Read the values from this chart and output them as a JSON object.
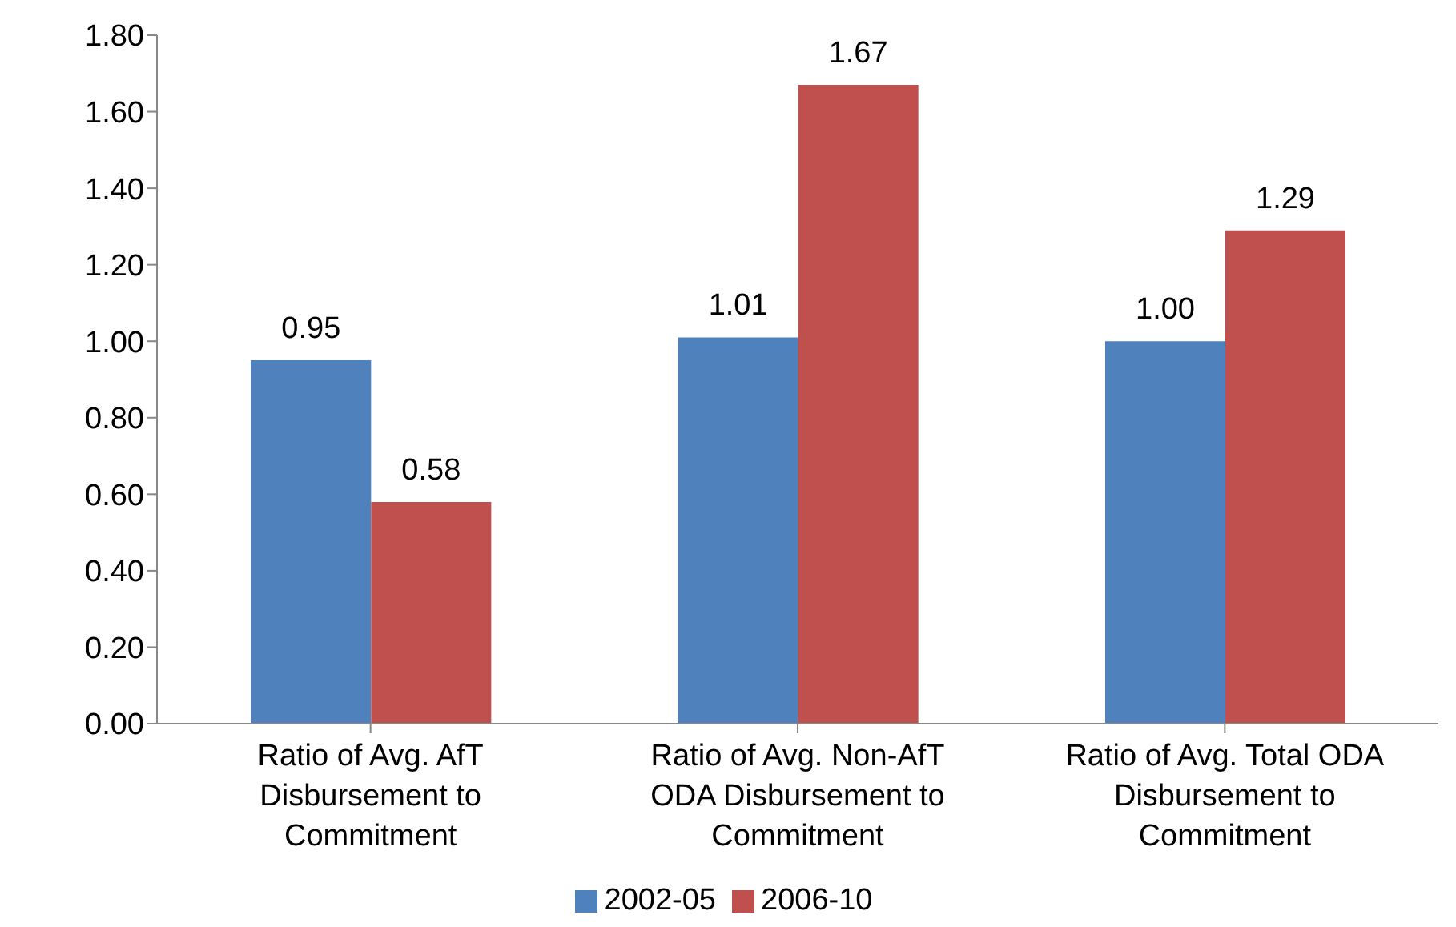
{
  "chart_data": {
    "type": "bar",
    "categories": [
      "Ratio of Avg. AfT Disbursement to Commitment",
      "Ratio of Avg. Non-AfT ODA Disbursement to Commitment",
      "Ratio of Avg. Total ODA Disbursement to Commitment"
    ],
    "series": [
      {
        "name": "2002-05",
        "color": "#4f81bd",
        "values": [
          0.95,
          1.01,
          1.0
        ],
        "value_labels": [
          "0.95",
          "1.01",
          "1.00"
        ]
      },
      {
        "name": "2006-10",
        "color": "#c0504d",
        "values": [
          0.58,
          1.67,
          1.29
        ],
        "value_labels": [
          "0.58",
          "1.67",
          "1.29"
        ]
      }
    ],
    "ylim": [
      0,
      1.8
    ],
    "yticks": [
      {
        "value": 0,
        "label": "0.00"
      },
      {
        "value": 0.2,
        "label": "0.20"
      },
      {
        "value": 0.4,
        "label": "0.40"
      },
      {
        "value": 0.6,
        "label": "0.60"
      },
      {
        "value": 0.8,
        "label": "0.80"
      },
      {
        "value": 1,
        "label": "1.00"
      },
      {
        "value": 1.2,
        "label": "1.20"
      },
      {
        "value": 1.4,
        "label": "1.40"
      },
      {
        "value": 1.6,
        "label": "1.60"
      },
      {
        "value": 1.8,
        "label": "1.80"
      }
    ],
    "grid": false,
    "legend": "bottom"
  }
}
